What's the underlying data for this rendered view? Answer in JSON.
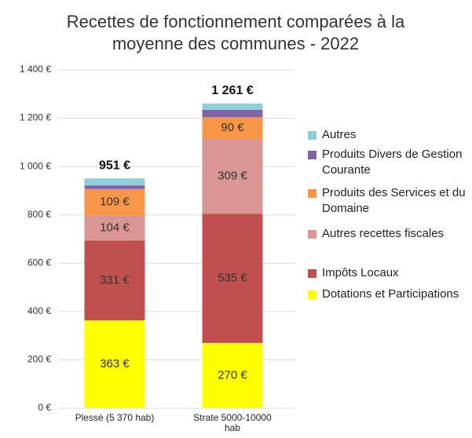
{
  "chart_data": {
    "type": "stacked_bar",
    "title": "Recettes de fonctionnement comparées à la moyenne des communes - 2022",
    "categories": [
      "Plessé (5 370 hab)",
      "Strate 5000-10000 hab"
    ],
    "series": [
      {
        "name": "Dotations et Participations",
        "color": "#ffff00",
        "values": [
          363,
          270
        ],
        "value_labels": [
          "363 €",
          "270 €"
        ]
      },
      {
        "name": "Impôts Locaux",
        "color": "#c0504d",
        "values": [
          331,
          535
        ],
        "value_labels": [
          "331 €",
          "535 €"
        ]
      },
      {
        "name": "Autres recettes fiscales",
        "color": "#d99694",
        "values": [
          104,
          309
        ],
        "value_labels": [
          "104 €",
          "309 €"
        ]
      },
      {
        "name": "Produits des Services et du Domaine",
        "color": "#f79646",
        "values": [
          109,
          90
        ],
        "value_labels": [
          "109 €",
          "90 €"
        ]
      },
      {
        "name": "Produits Divers de Gestion Courante",
        "color": "#8064a2",
        "values": [
          15,
          31
        ],
        "value_labels": [
          null,
          null
        ]
      },
      {
        "name": "Autres",
        "color": "#92cddc",
        "values": [
          29,
          26
        ],
        "value_labels": [
          null,
          null
        ]
      }
    ],
    "totals": [
      951,
      1261
    ],
    "total_labels": [
      "951 €",
      "1 261 €"
    ],
    "ylim": [
      0,
      1400
    ],
    "yticks": [
      {
        "value": 0,
        "label": "0 €"
      },
      {
        "value": 200,
        "label": "200 €"
      },
      {
        "value": 400,
        "label": "400 €"
      },
      {
        "value": 600,
        "label": "600 €"
      },
      {
        "value": 800,
        "label": "800 €"
      },
      {
        "value": 1000,
        "label": "1 000 €"
      },
      {
        "value": 1200,
        "label": "1 200 €"
      },
      {
        "value": 1400,
        "label": "1 400 €"
      }
    ],
    "grid": true,
    "legend": "right"
  }
}
